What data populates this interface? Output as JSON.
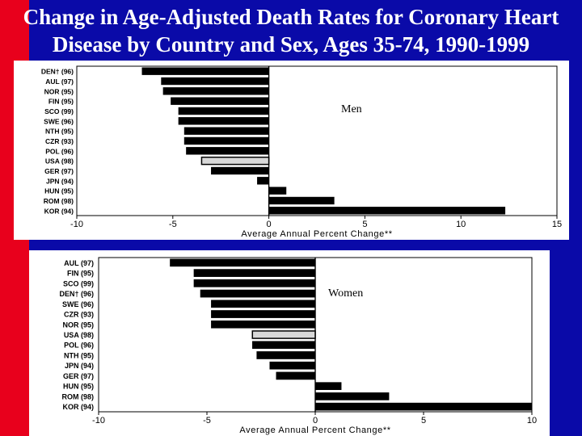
{
  "slide": {
    "title_line1": "Change in Age-Adjusted Death Rates for Coronary Heart",
    "title_line2": "Disease by Country and Sex, Ages 35-74, 1990-1999",
    "colors": {
      "background": "#0a0aa8",
      "accent_band": "#e8001c",
      "bar": "#000000",
      "highlight_bar": "#d8d8d8"
    }
  },
  "chart_data": [
    {
      "type": "bar",
      "orientation": "horizontal",
      "panel_label": "Men",
      "xlabel": "Average Annual Percent Change**",
      "xlim": [
        -10,
        15
      ],
      "xticks": [
        -10,
        -5,
        0,
        5,
        10,
        15
      ],
      "categories": [
        "DEN† (96)",
        "AUL (97)",
        "NOR (95)",
        "FIN (95)",
        "SCO (99)",
        "SWE (96)",
        "NTH (95)",
        "CZR (93)",
        "POL (96)",
        "USA (98)",
        "GER (97)",
        "JPN (94)",
        "HUN (95)",
        "ROM (98)",
        "KOR (94)"
      ],
      "values": [
        -6.6,
        -5.6,
        -5.5,
        -5.1,
        -4.7,
        -4.7,
        -4.4,
        -4.4,
        -4.3,
        -3.5,
        -3.0,
        -0.6,
        0.9,
        3.4,
        12.3
      ],
      "highlight": "USA (98)"
    },
    {
      "type": "bar",
      "orientation": "horizontal",
      "panel_label": "Women",
      "xlabel": "Average Annual Percent Change**",
      "xlim": [
        -10,
        10
      ],
      "xticks": [
        -10,
        -5,
        0,
        5,
        10
      ],
      "categories": [
        "AUL (97)",
        "FIN (95)",
        "SCO (99)",
        "DEN† (96)",
        "SWE (96)",
        "CZR (93)",
        "NOR (95)",
        "USA (98)",
        "POL (96)",
        "NTH (95)",
        "JPN (94)",
        "GER (97)",
        "HUN (95)",
        "ROM (98)",
        "KOR (94)"
      ],
      "values": [
        -6.7,
        -5.6,
        -5.6,
        -5.3,
        -4.8,
        -4.8,
        -4.8,
        -2.9,
        -2.9,
        -2.7,
        -2.1,
        -1.8,
        1.2,
        3.4,
        10.0
      ],
      "highlight": "USA (98)"
    }
  ]
}
